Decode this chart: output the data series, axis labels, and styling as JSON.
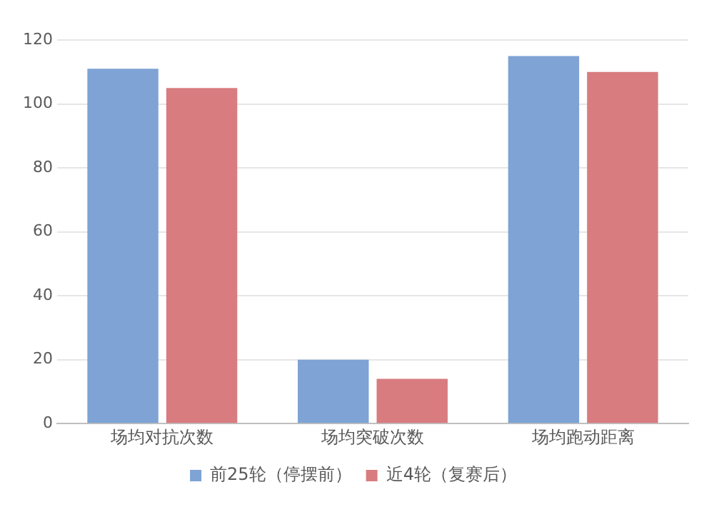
{
  "chart_data": {
    "type": "bar",
    "categories": [
      "场均对抗次数",
      "场均突破次数",
      "场均跑动距离"
    ],
    "series": [
      {
        "name": "前25轮（停摆前）",
        "color": "#7ea3d4",
        "values": [
          111,
          20,
          115
        ]
      },
      {
        "name": "近4轮（复赛后）",
        "color": "#d87c80",
        "values": [
          105,
          14,
          110
        ]
      }
    ],
    "ylim": [
      0,
      120
    ],
    "yticks": [
      0,
      20,
      40,
      60,
      80,
      100,
      120
    ],
    "grid": "y",
    "legend": "bottom"
  }
}
